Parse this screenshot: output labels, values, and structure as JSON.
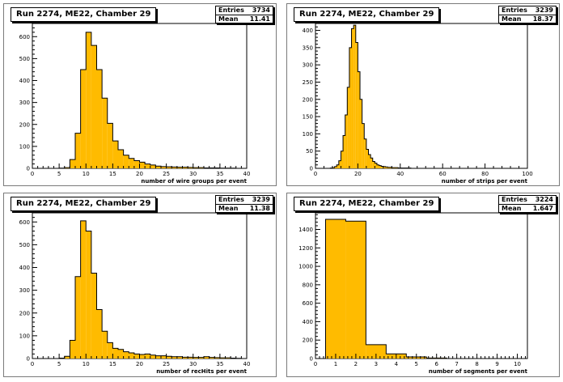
{
  "colors": {
    "fill": "#ffbb00",
    "stroke": "#000000",
    "background": "#ffffff"
  },
  "pads": [
    {
      "title": "Run 2274, ME22, Chamber 29",
      "stats": {
        "entries_label": "Entries",
        "entries": "3734",
        "mean_label": "Mean",
        "mean": "11.41"
      }
    },
    {
      "title": "Run 2274, ME22, Chamber 29",
      "stats": {
        "entries_label": "Entries",
        "entries": "3239",
        "mean_label": "Mean",
        "mean": "18.37"
      }
    },
    {
      "title": "Run 2274, ME22, Chamber 29",
      "stats": {
        "entries_label": "Entries",
        "entries": "3239",
        "mean_label": "Mean",
        "mean": "11.38"
      }
    },
    {
      "title": "Run 2274, ME22, Chamber 29",
      "stats": {
        "entries_label": "Entries",
        "entries": "3224",
        "mean_label": "Mean",
        "mean": "1.647"
      }
    }
  ],
  "chart_data": [
    {
      "type": "bar",
      "title": "Run 2274, ME22, Chamber 29",
      "xlabel": "number of wire groups per event",
      "ylabel": "",
      "xlim": [
        0,
        40
      ],
      "ylim": [
        0,
        660
      ],
      "bin_width": 1,
      "bin_start": 0,
      "values": [
        0,
        0,
        0,
        0,
        0,
        1,
        3,
        40,
        160,
        450,
        620,
        560,
        450,
        320,
        205,
        125,
        85,
        60,
        45,
        35,
        28,
        20,
        15,
        10,
        8,
        7,
        6,
        5,
        5,
        4,
        3,
        3,
        2,
        2,
        2,
        1,
        1,
        1,
        0,
        0
      ],
      "xticks": [
        0,
        5,
        10,
        15,
        20,
        25,
        30,
        35,
        40
      ],
      "yticks": [
        0,
        100,
        200,
        300,
        400,
        500,
        600
      ]
    },
    {
      "type": "bar",
      "title": "Run 2274, ME22, Chamber 29",
      "xlabel": "number of strips per event",
      "ylabel": "",
      "xlim": [
        0,
        100
      ],
      "ylim": [
        0,
        420
      ],
      "bin_width": 1,
      "bin_start": 0,
      "values": [
        0,
        0,
        0,
        0,
        0,
        0,
        0,
        1,
        2,
        5,
        10,
        22,
        50,
        95,
        155,
        235,
        350,
        405,
        415,
        365,
        280,
        200,
        130,
        85,
        55,
        40,
        30,
        20,
        15,
        10,
        8,
        6,
        5,
        4,
        3,
        3,
        2,
        2,
        2,
        1,
        1,
        1,
        1,
        1,
        1,
        0,
        0,
        0,
        0,
        0,
        0,
        0,
        0,
        0,
        0,
        0,
        0,
        0,
        0,
        0,
        0,
        0,
        0,
        0,
        0,
        0,
        0,
        0,
        0,
        0,
        0,
        0,
        0,
        0,
        0,
        0,
        0,
        0,
        0,
        0,
        0,
        0,
        0,
        0,
        0,
        0,
        0,
        0,
        0,
        0,
        0,
        0,
        0,
        0,
        0,
        0,
        0,
        0,
        0,
        0
      ],
      "xticks": [
        0,
        20,
        40,
        60,
        80,
        100
      ],
      "yticks": [
        0,
        50,
        100,
        150,
        200,
        250,
        300,
        350,
        400
      ]
    },
    {
      "type": "bar",
      "title": "Run 2274, ME22, Chamber 29",
      "xlabel": "number of recHits per event",
      "ylabel": "",
      "xlim": [
        0,
        40
      ],
      "ylim": [
        0,
        640
      ],
      "bin_width": 1,
      "bin_start": 0,
      "values": [
        0,
        0,
        0,
        0,
        0,
        2,
        10,
        80,
        360,
        605,
        560,
        375,
        215,
        120,
        70,
        45,
        40,
        30,
        25,
        20,
        18,
        20,
        15,
        12,
        12,
        10,
        8,
        8,
        6,
        6,
        5,
        5,
        8,
        5,
        4,
        3,
        3,
        2,
        1,
        0
      ],
      "xticks": [
        0,
        5,
        10,
        15,
        20,
        25,
        30,
        35,
        40
      ],
      "yticks": [
        0,
        100,
        200,
        300,
        400,
        500,
        600
      ]
    },
    {
      "type": "bar",
      "title": "Run 2274, ME22, Chamber 29",
      "xlabel": "number of segments per event",
      "ylabel": "",
      "xlim": [
        0,
        10.5
      ],
      "ylim": [
        0,
        1580
      ],
      "bin_width": 1,
      "bin_start": 0.5,
      "values": [
        1510,
        1490,
        150,
        50,
        18,
        6,
        0,
        0,
        0,
        0
      ],
      "xticks": [
        0,
        1,
        2,
        3,
        4,
        5,
        6,
        7,
        8,
        9,
        10
      ],
      "yticks": [
        0,
        200,
        400,
        600,
        800,
        1000,
        1200,
        1400
      ]
    }
  ]
}
